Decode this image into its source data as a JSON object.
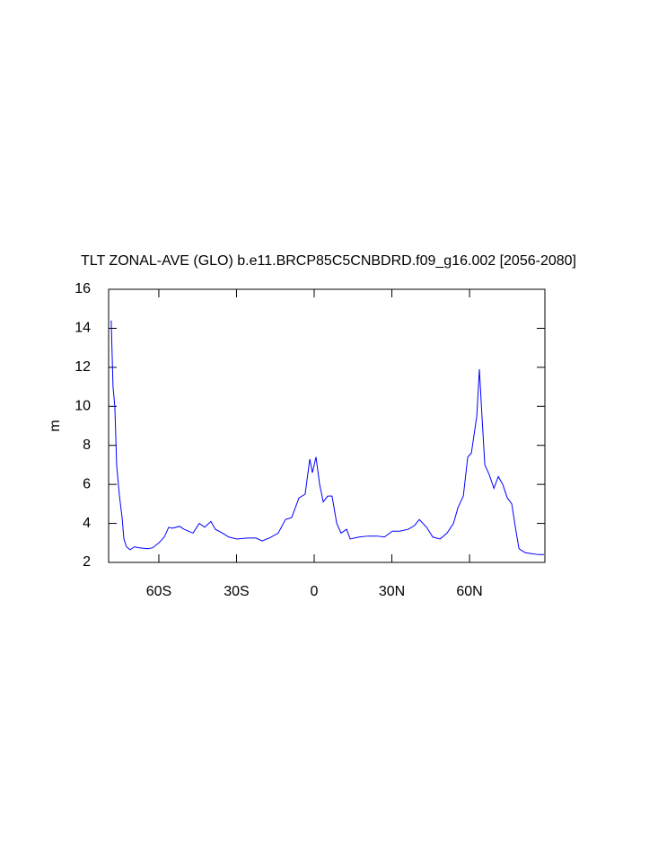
{
  "chart_data": {
    "type": "line",
    "title": "TLT ZONAL-AVE (GLO) b.e11.BRCP85C5CNBDRD.f09_g16.002 [2056-2080]",
    "y_label": "m",
    "x": [
      -78.4,
      -77.7,
      -77.0,
      -76.3,
      -75.3,
      -74.2,
      -73.5,
      -72.5,
      -71.1,
      -69.4,
      -67.6,
      -64.2,
      -62.4,
      -60.0,
      -57.9,
      -56.2,
      -54.8,
      -52.0,
      -50.3,
      -46.8,
      -44.4,
      -42.3,
      -39.9,
      -38.2,
      -35.4,
      -33.0,
      -29.8,
      -26.0,
      -22.5,
      -20.1,
      -17.3,
      -13.9,
      -11.1,
      -8.7,
      -5.9,
      -3.5,
      -1.7,
      -0.7,
      0.7,
      2.1,
      3.5,
      5.2,
      6.9,
      8.7,
      10.4,
      12.5,
      13.9,
      17.3,
      20.8,
      24.3,
      27.1,
      30.2,
      33.0,
      36.4,
      38.8,
      40.6,
      43.4,
      45.8,
      48.6,
      51.3,
      53.8,
      55.5,
      57.6,
      59.3,
      60.7,
      61.7,
      62.8,
      63.8,
      64.8,
      65.9,
      67.6,
      69.4,
      71.1,
      72.8,
      74.6,
      76.3,
      77.7,
      79.1,
      81.5,
      83.9,
      86.7,
      88.8
    ],
    "series": [
      {
        "color": "#0000ff",
        "values": [
          14.4,
          11.0,
          10.0,
          7.0,
          5.5,
          4.3,
          3.2,
          2.8,
          2.65,
          2.8,
          2.75,
          2.7,
          2.75,
          3.0,
          3.3,
          3.8,
          3.75,
          3.85,
          3.7,
          3.5,
          4.0,
          3.8,
          4.1,
          3.7,
          3.5,
          3.3,
          3.2,
          3.25,
          3.25,
          3.1,
          3.25,
          3.5,
          4.2,
          4.3,
          5.3,
          5.5,
          7.3,
          6.6,
          7.4,
          6.0,
          5.1,
          5.4,
          5.4,
          4.0,
          3.5,
          3.7,
          3.2,
          3.3,
          3.35,
          3.35,
          3.3,
          3.6,
          3.6,
          3.7,
          3.9,
          4.2,
          3.8,
          3.3,
          3.2,
          3.5,
          4.0,
          4.8,
          5.4,
          7.4,
          7.6,
          8.5,
          9.5,
          11.9,
          9.5,
          7.0,
          6.5,
          5.8,
          6.4,
          6.0,
          5.3,
          5.0,
          3.8,
          2.7,
          2.5,
          2.45,
          2.4,
          2.4
        ]
      }
    ],
    "xlim": [
      -79.4,
      89.1
    ],
    "xticks": [
      {
        "value": -60,
        "label": "60S"
      },
      {
        "value": -30,
        "label": "30S"
      },
      0,
      {
        "value": 30,
        "label": "30N"
      },
      {
        "value": 60,
        "label": "60N"
      }
    ],
    "ylim": [
      2,
      16
    ],
    "yticks": [
      2,
      4,
      6,
      8,
      10,
      12,
      14,
      16
    ]
  }
}
